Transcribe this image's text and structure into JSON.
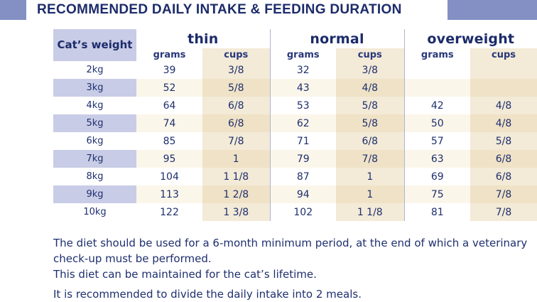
{
  "header": {
    "title": "RECOMMENDED DAILY INTAKE & FEEDING DURATION"
  },
  "table": {
    "weight_header": "Cat’s weight",
    "groups": [
      "thin",
      "normal",
      "overweight"
    ],
    "subheaders": [
      "grams",
      "cups",
      "grams",
      "cups",
      "grams",
      "cups"
    ],
    "rows": [
      {
        "weight": "2kg",
        "thin_g": "39",
        "thin_c": "3/8",
        "normal_g": "32",
        "normal_c": "3/8",
        "over_g": "",
        "over_c": ""
      },
      {
        "weight": "3kg",
        "thin_g": "52",
        "thin_c": "5/8",
        "normal_g": "43",
        "normal_c": "4/8",
        "over_g": "",
        "over_c": ""
      },
      {
        "weight": "4kg",
        "thin_g": "64",
        "thin_c": "6/8",
        "normal_g": "53",
        "normal_c": "5/8",
        "over_g": "42",
        "over_c": "4/8"
      },
      {
        "weight": "5kg",
        "thin_g": "74",
        "thin_c": "6/8",
        "normal_g": "62",
        "normal_c": "5/8",
        "over_g": "50",
        "over_c": "4/8"
      },
      {
        "weight": "6kg",
        "thin_g": "85",
        "thin_c": "7/8",
        "normal_g": "71",
        "normal_c": "6/8",
        "over_g": "57",
        "over_c": "5/8"
      },
      {
        "weight": "7kg",
        "thin_g": "95",
        "thin_c": "1",
        "normal_g": "79",
        "normal_c": "7/8",
        "over_g": "63",
        "over_c": "6/8"
      },
      {
        "weight": "8kg",
        "thin_g": "104",
        "thin_c": "1 1/8",
        "normal_g": "87",
        "normal_c": "1",
        "over_g": "69",
        "over_c": "6/8"
      },
      {
        "weight": "9kg",
        "thin_g": "113",
        "thin_c": "1 2/8",
        "normal_g": "94",
        "normal_c": "1",
        "over_g": "75",
        "over_c": "7/8"
      },
      {
        "weight": "10kg",
        "thin_g": "122",
        "thin_c": "1 3/8",
        "normal_g": "102",
        "normal_c": "1 1/8",
        "over_g": "81",
        "over_c": "7/8"
      }
    ]
  },
  "notes": {
    "line1": "The diet should be used for a 6-month minimum period, at the end of which a veterinary check-up must be performed.",
    "line2": "This diet can be maintained for the cat’s lifetime.",
    "line3": "It is recommended to divide the daily intake into 2 meals."
  },
  "colors": {
    "header_bar": "#8490c4",
    "weight_column": "#c9cce6",
    "cups_column": "#f3ead7",
    "text": "#1e2f6e"
  }
}
